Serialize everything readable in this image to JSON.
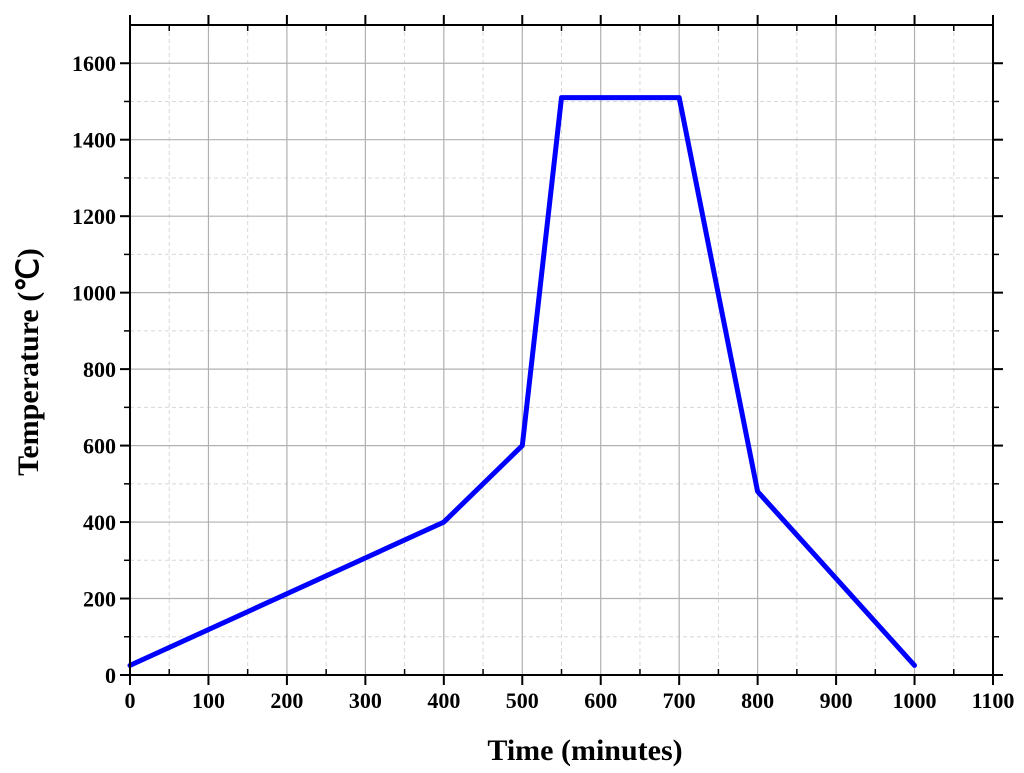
{
  "chart_data": {
    "type": "line",
    "title": "",
    "xlabel": "Time (minutes)",
    "ylabel": "Temperature (℃)",
    "xlim": [
      0,
      1100
    ],
    "ylim": [
      0,
      1700
    ],
    "x_ticks": [
      0,
      100,
      200,
      300,
      400,
      500,
      600,
      700,
      800,
      900,
      1000,
      1100
    ],
    "x_tick_labels": [
      "0",
      "100",
      "200",
      "300",
      "400",
      "500",
      "600",
      "700",
      "800",
      "900",
      "1000",
      "1100"
    ],
    "y_ticks": [
      0,
      200,
      400,
      600,
      800,
      1000,
      1200,
      1400,
      1600
    ],
    "y_tick_labels": [
      "0",
      "200",
      "400",
      "600",
      "800",
      "1000",
      "1200",
      "1400",
      "1600"
    ],
    "grid": true,
    "minor_grid": true,
    "series": [
      {
        "color": "#0000ff",
        "x": [
          0,
          400,
          500,
          550,
          700,
          800,
          1000
        ],
        "y": [
          25,
          400,
          600,
          1510,
          1510,
          480,
          25
        ]
      }
    ]
  }
}
